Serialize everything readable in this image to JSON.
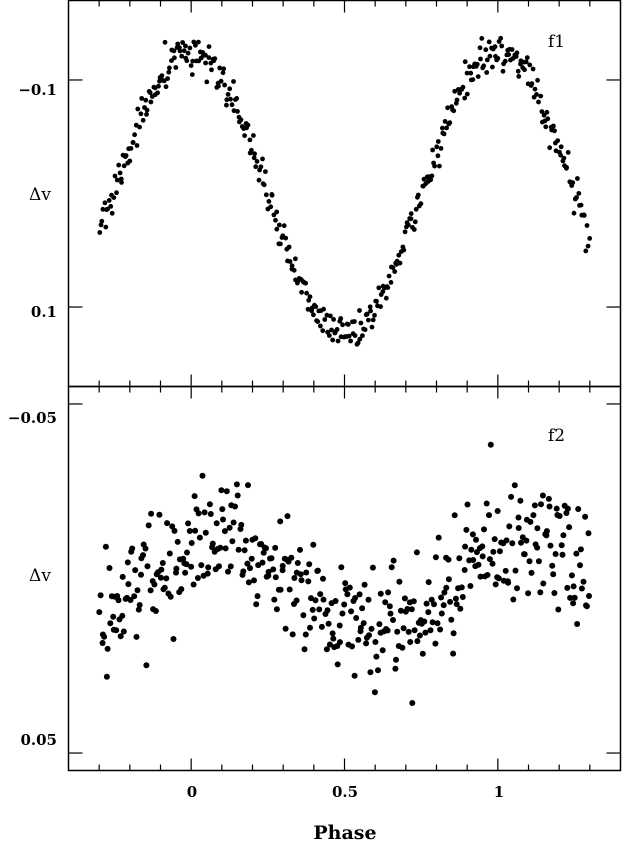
{
  "chart_data": [
    {
      "type": "scatter",
      "panel_label": "f1",
      "ylabel": "Δv",
      "xlim": [
        -0.4,
        1.4
      ],
      "ylim": [
        0.17,
        -0.17
      ],
      "inverted_y": true,
      "yticks": [
        {
          "value": -0.1,
          "label": "−0.1"
        },
        {
          "value": 0.1,
          "label": "0.1"
        }
      ],
      "model": {
        "shape": "sine",
        "mean": 0.0,
        "amplitude": 0.125,
        "min_phase": 0.0,
        "noise": 0.008
      },
      "x_range": [
        -0.3,
        1.3
      ],
      "n_points": 420
    },
    {
      "type": "scatter",
      "panel_label": "f2",
      "ylabel": "Δv",
      "xlim": [
        -0.4,
        1.4
      ],
      "ylim": [
        0.055,
        -0.055
      ],
      "inverted_y": true,
      "yticks": [
        {
          "value": -0.05,
          "label": "−0.05"
        },
        {
          "value": 0.05,
          "label": "0.05"
        }
      ],
      "model": {
        "shape": "sine",
        "mean": 0.002,
        "amplitude": 0.015,
        "min_phase": 0.1,
        "noise": 0.009
      },
      "x_range": [
        -0.3,
        1.3
      ],
      "n_points": 420
    }
  ],
  "xaxis": {
    "label": "Phase",
    "ticks": [
      {
        "value": 0,
        "label": "0"
      },
      {
        "value": 0.5,
        "label": "0.5"
      },
      {
        "value": 1,
        "label": "1"
      }
    ],
    "minor_step": 0.1
  }
}
